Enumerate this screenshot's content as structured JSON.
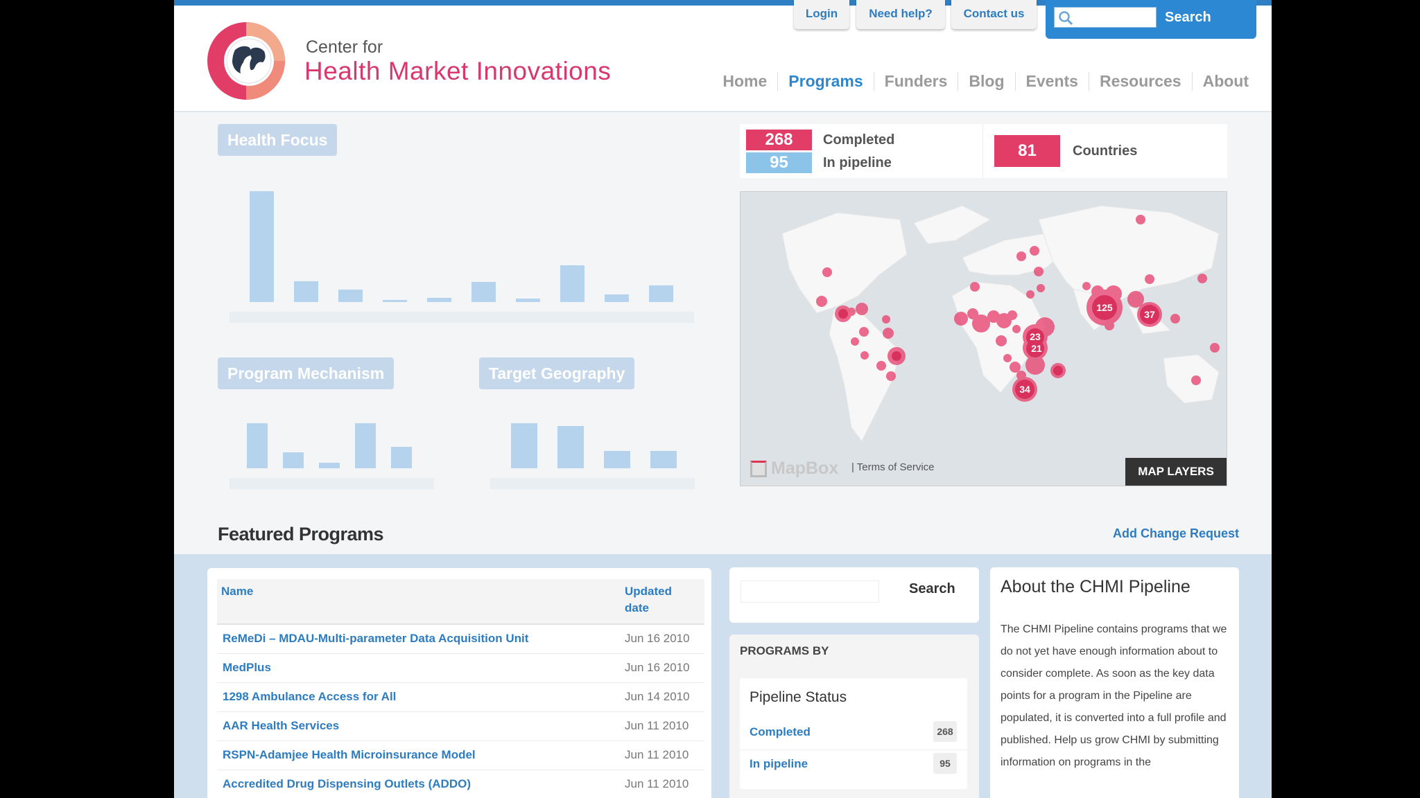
{
  "header": {
    "utility_links": {
      "login": "Login",
      "help": "Need help?",
      "contact": "Contact us"
    },
    "search_button": "Search",
    "logo": {
      "line1": "Center for",
      "line2": "Health Market Innovations"
    },
    "nav": [
      "Home",
      "Programs",
      "Funders",
      "Blog",
      "Events",
      "Resources",
      "About"
    ],
    "nav_active": "Programs"
  },
  "dashboard": {
    "health_focus_label": "Health Focus",
    "program_mechanism_label": "Program Mechanism",
    "target_geography_label": "Target Geography",
    "health_focus_bars": [
      1.0,
      0.19,
      0.11,
      0.02,
      0.04,
      0.18,
      0.03,
      0.33,
      0.07,
      0.15
    ],
    "mechanism_bars": [
      1.0,
      0.35,
      0.13,
      1.0,
      0.47
    ],
    "geography_bars": [
      1.0,
      0.94,
      0.39,
      0.38
    ]
  },
  "stats": {
    "completed_count": "268",
    "completed_label": "Completed",
    "pipeline_count": "95",
    "pipeline_label": "In pipeline",
    "countries_count": "81",
    "countries_label": "Countries",
    "completed_color": "#e23d67",
    "pipeline_color": "#8cc3e8"
  },
  "map": {
    "cluster_labels": [
      "125",
      "37",
      "23",
      "21",
      "34"
    ],
    "attribution": "MapBox",
    "terms": "| Terms of Service",
    "layers_button": "MAP LAYERS"
  },
  "featured": {
    "title": "Featured Programs",
    "add_change_request": "Add Change Request",
    "col_name": "Name",
    "col_updated": "Updated date",
    "rows": [
      {
        "name": "ReMeDi – MDAU-Multi-parameter Data Acquisition Unit",
        "date": "Jun 16 2010"
      },
      {
        "name": "MedPlus",
        "date": "Jun 16 2010"
      },
      {
        "name": "1298 Ambulance Access for All",
        "date": "Jun 14 2010"
      },
      {
        "name": "AAR Health Services",
        "date": "Jun 11 2010"
      },
      {
        "name": "RSPN-Adamjee Health Microinsurance Model",
        "date": "Jun 11 2010"
      },
      {
        "name": "Accredited Drug Dispensing Outlets (ADDO)",
        "date": "Jun 11 2010"
      }
    ]
  },
  "sidebar": {
    "search_button": "Search",
    "programs_by": "PROGRAMS BY",
    "pipeline_status_title": "Pipeline Status",
    "status_items": [
      {
        "label": "Completed",
        "count": "268"
      },
      {
        "label": "In pipeline",
        "count": "95"
      }
    ]
  },
  "about": {
    "title": "About the CHMI Pipeline",
    "text": "The CHMI Pipeline contains programs that we do not yet have enough information about to consider complete. As soon as the key data points for a program in the Pipeline are populated, it is converted into a full profile and published. Help us grow CHMI by submitting information on programs in the"
  }
}
